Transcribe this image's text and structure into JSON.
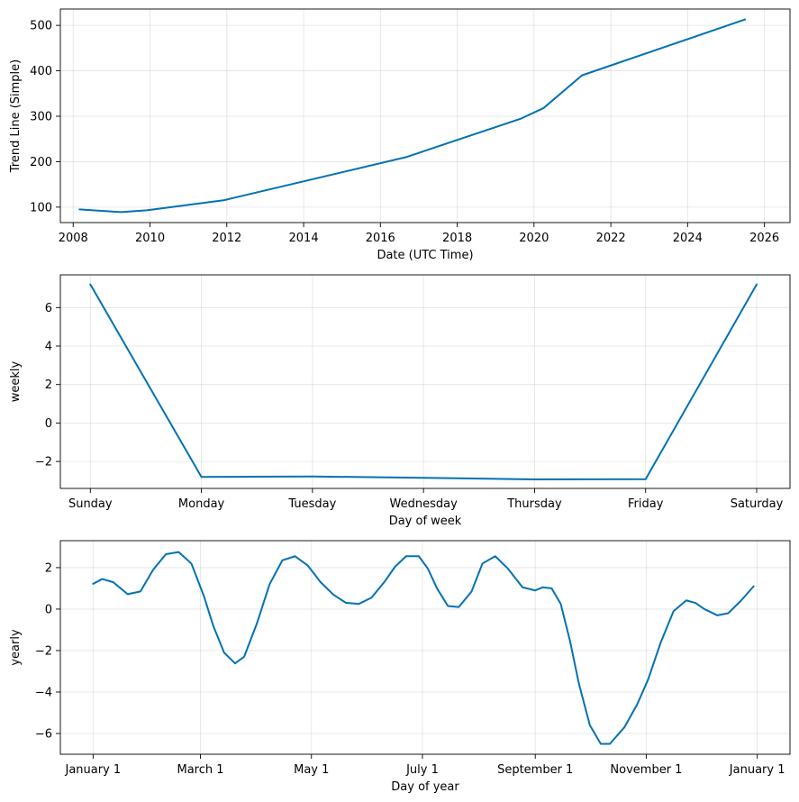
{
  "figure": {
    "line_color": "#0072B2",
    "grid_color": "#b0b0b0"
  },
  "chart_data": [
    {
      "type": "line",
      "name": "trend",
      "xlabel": "Date (UTC Time)",
      "ylabel": "Trend Line (Simple)",
      "x_kind": "date",
      "xlim": [
        "2007-09-01",
        "2026-09-01"
      ],
      "ylim": [
        66,
        536
      ],
      "grid": true,
      "x_ticks": [
        {
          "value": "2008-01-01",
          "label": "2008"
        },
        {
          "value": "2010-01-01",
          "label": "2010"
        },
        {
          "value": "2012-01-01",
          "label": "2012"
        },
        {
          "value": "2014-01-01",
          "label": "2014"
        },
        {
          "value": "2016-01-01",
          "label": "2016"
        },
        {
          "value": "2018-01-01",
          "label": "2018"
        },
        {
          "value": "2020-01-01",
          "label": "2020"
        },
        {
          "value": "2022-01-01",
          "label": "2022"
        },
        {
          "value": "2024-01-01",
          "label": "2024"
        },
        {
          "value": "2026-01-01",
          "label": "2026"
        }
      ],
      "y_ticks": [
        {
          "value": 100,
          "label": "100"
        },
        {
          "value": 200,
          "label": "200"
        },
        {
          "value": 300,
          "label": "300"
        },
        {
          "value": 400,
          "label": "400"
        },
        {
          "value": 500,
          "label": "500"
        }
      ],
      "x": [
        "2008-03-01",
        "2009-04-01",
        "2009-12-01",
        "2011-12-01",
        "2016-09-01",
        "2019-09-01",
        "2020-04-01",
        "2021-04-01",
        "2025-07-01"
      ],
      "y": [
        95,
        89,
        93,
        115,
        210,
        295,
        318,
        390,
        513
      ]
    },
    {
      "type": "line",
      "name": "weekly",
      "xlabel": "Day of week",
      "ylabel": "weekly",
      "x_kind": "number",
      "xlim": [
        -0.27,
        6.3
      ],
      "ylim": [
        -3.4,
        7.7
      ],
      "grid": true,
      "x_ticks": [
        {
          "value": 0,
          "label": "Sunday"
        },
        {
          "value": 1,
          "label": "Monday"
        },
        {
          "value": 2,
          "label": "Tuesday"
        },
        {
          "value": 3,
          "label": "Wednesday"
        },
        {
          "value": 4,
          "label": "Thursday"
        },
        {
          "value": 5,
          "label": "Friday"
        },
        {
          "value": 6,
          "label": "Saturday"
        }
      ],
      "y_ticks": [
        {
          "value": -2,
          "label": "−2"
        },
        {
          "value": 0,
          "label": "0"
        },
        {
          "value": 2,
          "label": "2"
        },
        {
          "value": 4,
          "label": "4"
        },
        {
          "value": 6,
          "label": "6"
        }
      ],
      "x": [
        0,
        1,
        2,
        3,
        4,
        5,
        6
      ],
      "y": [
        7.2,
        -2.8,
        -2.78,
        -2.85,
        -2.93,
        -2.92,
        7.2
      ]
    },
    {
      "type": "line",
      "name": "yearly",
      "xlabel": "Day of year",
      "ylabel": "yearly",
      "x_kind": "date",
      "xlim": [
        "2016-12-14",
        "2018-01-19"
      ],
      "ylim": [
        -7.0,
        3.3
      ],
      "grid": true,
      "x_ticks": [
        {
          "value": "2017-01-01",
          "label": "January 1"
        },
        {
          "value": "2017-03-01",
          "label": "March 1"
        },
        {
          "value": "2017-05-01",
          "label": "May 1"
        },
        {
          "value": "2017-07-01",
          "label": "July 1"
        },
        {
          "value": "2017-09-01",
          "label": "September 1"
        },
        {
          "value": "2017-11-01",
          "label": "November 1"
        },
        {
          "value": "2018-01-01",
          "label": "January 1"
        }
      ],
      "y_ticks": [
        {
          "value": -6,
          "label": "−6"
        },
        {
          "value": -4,
          "label": "−4"
        },
        {
          "value": -2,
          "label": "−2"
        },
        {
          "value": 0,
          "label": "0"
        },
        {
          "value": 2,
          "label": "2"
        }
      ],
      "x": [
        "2017-01-01",
        "2017-01-06",
        "2017-01-12",
        "2017-01-20",
        "2017-01-27",
        "2017-02-03",
        "2017-02-10",
        "2017-02-17",
        "2017-02-24",
        "2017-03-03",
        "2017-03-08",
        "2017-03-14",
        "2017-03-20",
        "2017-03-25",
        "2017-04-01",
        "2017-04-08",
        "2017-04-15",
        "2017-04-22",
        "2017-04-29",
        "2017-05-06",
        "2017-05-13",
        "2017-05-20",
        "2017-05-27",
        "2017-06-03",
        "2017-06-10",
        "2017-06-16",
        "2017-06-22",
        "2017-06-29",
        "2017-07-04",
        "2017-07-09",
        "2017-07-15",
        "2017-07-21",
        "2017-07-28",
        "2017-08-03",
        "2017-08-10",
        "2017-08-17",
        "2017-08-25",
        "2017-09-01",
        "2017-09-05",
        "2017-09-10",
        "2017-09-15",
        "2017-09-20",
        "2017-09-25",
        "2017-10-01",
        "2017-10-07",
        "2017-10-12",
        "2017-10-20",
        "2017-10-27",
        "2017-11-02",
        "2017-11-09",
        "2017-11-16",
        "2017-11-23",
        "2017-11-28",
        "2017-12-03",
        "2017-12-10",
        "2017-12-16",
        "2017-12-23",
        "2017-12-30"
      ],
      "y": [
        1.22,
        1.45,
        1.3,
        0.72,
        0.85,
        1.9,
        2.65,
        2.75,
        2.2,
        0.6,
        -0.8,
        -2.1,
        -2.62,
        -2.3,
        -0.7,
        1.2,
        2.35,
        2.55,
        2.1,
        1.3,
        0.7,
        0.3,
        0.25,
        0.55,
        1.3,
        2.05,
        2.55,
        2.55,
        1.95,
        1.0,
        0.15,
        0.1,
        0.85,
        2.2,
        2.55,
        1.95,
        1.05,
        0.9,
        1.05,
        1.0,
        0.25,
        -1.5,
        -3.6,
        -5.6,
        -6.5,
        -6.5,
        -5.7,
        -4.6,
        -3.4,
        -1.6,
        -0.1,
        0.42,
        0.3,
        0.0,
        -0.3,
        -0.2,
        0.4,
        1.1
      ]
    }
  ]
}
